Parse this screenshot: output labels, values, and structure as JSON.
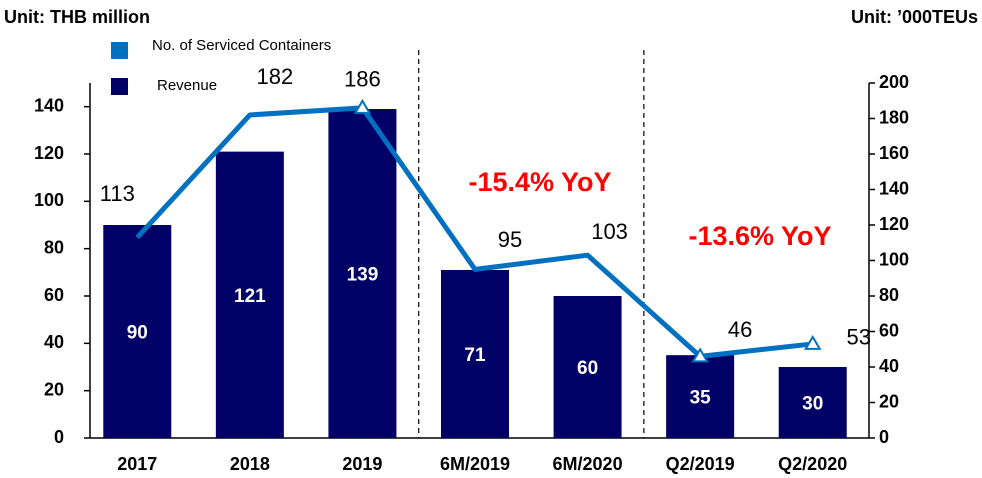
{
  "chart_data": {
    "type": "bar",
    "y_label": "Unit: THB million",
    "y2_label": "Unit: ’000TEUs",
    "categories": [
      "2017",
      "2018",
      "2019",
      "6M/2019",
      "6M/2020",
      "Q2/2019",
      "Q2/2020"
    ],
    "series": [
      {
        "name": "Revenue",
        "type": "bar",
        "color": "#000066",
        "values": [
          90,
          121,
          139,
          71,
          60,
          35,
          30
        ]
      },
      {
        "name": "No. of Serviced Containers",
        "type": "line",
        "axis": "y2",
        "color": "#0070c0",
        "values": [
          113,
          182,
          186,
          95,
          103,
          46,
          53
        ],
        "markers_at": [
          2,
          5,
          6
        ]
      }
    ],
    "annotations": [
      "-15.4% YoY",
      "-13.6% YoY"
    ],
    "annotation_color": "#ff0000",
    "ylim": [
      0,
      150
    ],
    "yticks": [
      0,
      20,
      40,
      60,
      80,
      100,
      120,
      140
    ],
    "y2lim": [
      0,
      200
    ],
    "y2ticks": [
      0,
      20,
      40,
      60,
      80,
      100,
      120,
      140,
      160,
      180,
      200
    ]
  }
}
